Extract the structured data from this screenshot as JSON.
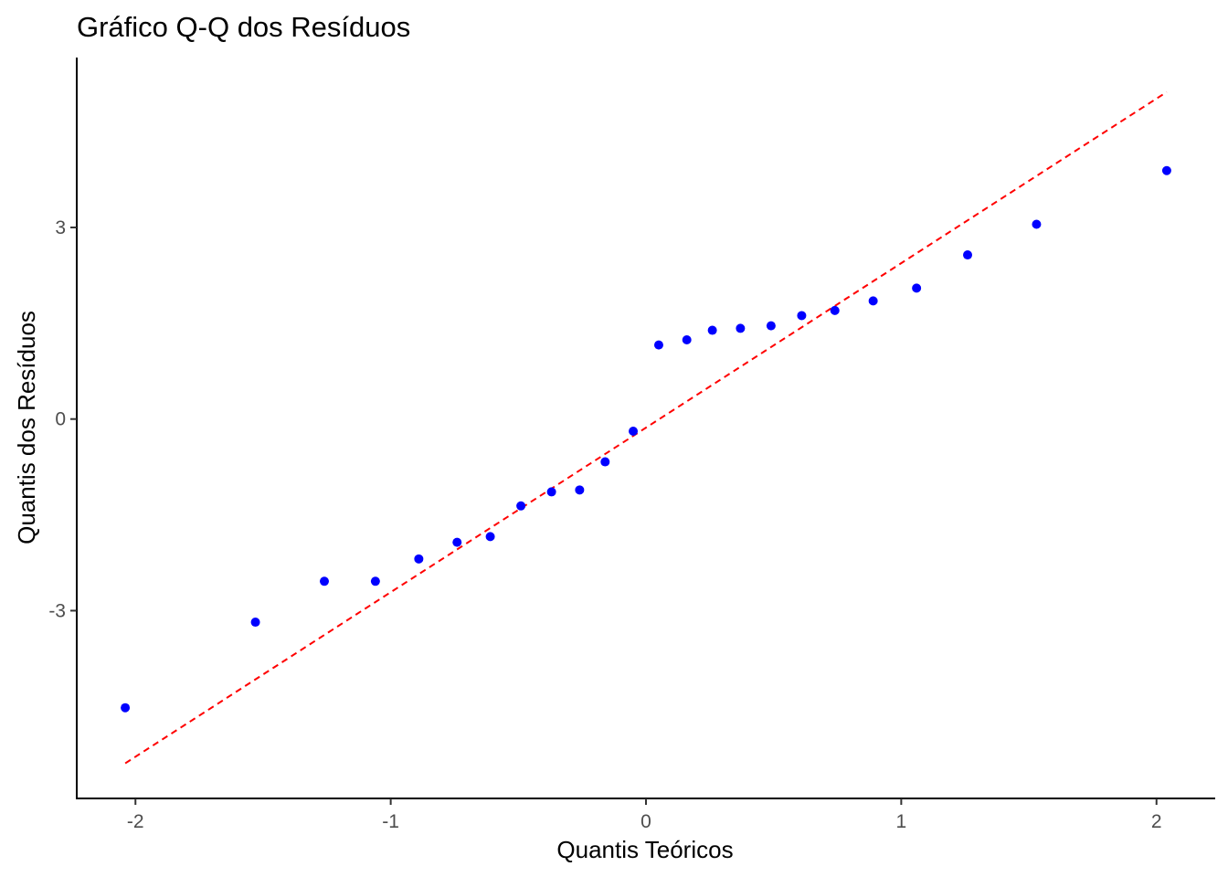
{
  "chart_data": {
    "type": "scatter",
    "title": "Gráfico Q-Q dos Resíduos",
    "xlabel": "Quantis Teóricos",
    "ylabel": "Quantis dos Resíduos",
    "xlim": [
      -2.23,
      2.23
    ],
    "ylim": [
      -5.94,
      5.66
    ],
    "x_ticks": [
      -2,
      -1,
      0,
      1,
      2
    ],
    "x_tick_labels": [
      "-2",
      "-1",
      "0",
      "1",
      "2"
    ],
    "y_ticks": [
      -3,
      0,
      3
    ],
    "y_tick_labels": [
      "-3",
      "0",
      "3"
    ],
    "grid": false,
    "legend": "none",
    "point_color": "#0000ff",
    "reference_line": {
      "style": "dashed",
      "color": "#ff0000",
      "from": [
        -2.04,
        -5.39
      ],
      "to": [
        2.04,
        5.12
      ]
    },
    "points": [
      {
        "x": -2.04,
        "y": -4.52
      },
      {
        "x": -1.53,
        "y": -3.18
      },
      {
        "x": -1.26,
        "y": -2.54
      },
      {
        "x": -1.06,
        "y": -2.54
      },
      {
        "x": -0.89,
        "y": -2.19
      },
      {
        "x": -0.74,
        "y": -1.93
      },
      {
        "x": -0.61,
        "y": -1.84
      },
      {
        "x": -0.49,
        "y": -1.36
      },
      {
        "x": -0.37,
        "y": -1.14
      },
      {
        "x": -0.26,
        "y": -1.11
      },
      {
        "x": -0.16,
        "y": -0.67
      },
      {
        "x": -0.05,
        "y": -0.19
      },
      {
        "x": 0.05,
        "y": 1.16
      },
      {
        "x": 0.16,
        "y": 1.24
      },
      {
        "x": 0.26,
        "y": 1.39
      },
      {
        "x": 0.37,
        "y": 1.42
      },
      {
        "x": 0.49,
        "y": 1.46
      },
      {
        "x": 0.61,
        "y": 1.62
      },
      {
        "x": 0.74,
        "y": 1.7
      },
      {
        "x": 0.89,
        "y": 1.85
      },
      {
        "x": 1.06,
        "y": 2.05
      },
      {
        "x": 1.26,
        "y": 2.57
      },
      {
        "x": 1.53,
        "y": 3.05
      },
      {
        "x": 2.04,
        "y": 3.89
      }
    ]
  }
}
